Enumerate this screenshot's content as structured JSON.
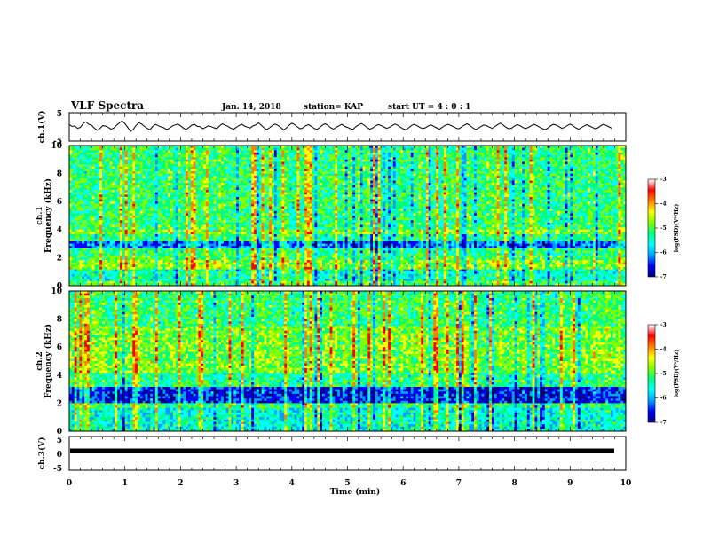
{
  "header": {
    "title": "VLF Spectra",
    "date": "Jan. 14, 2018",
    "station": "station= KAP",
    "start": "start  UT =   4 : 0  : 1"
  },
  "colors": {
    "spectrum_scale": [
      "#000080",
      "#0000ff",
      "#00a0ff",
      "#00ffff",
      "#00ff80",
      "#80ff00",
      "#ffff00",
      "#ff8000",
      "#ff0000",
      "#ffffff"
    ]
  },
  "chart_data": [
    {
      "id": "ch1-waveform",
      "type": "line",
      "ylabel": "ch.1(V)",
      "ylim": [
        -5,
        5
      ],
      "yticks": [
        "5",
        "-5"
      ],
      "xlim": [
        0,
        10
      ],
      "x_step_min": 0.05,
      "values": [
        0.8,
        0.2,
        0.3,
        -0.5,
        -0.2,
        1.2,
        1.8,
        0.9,
        0.6,
        -0.4,
        -1.2,
        -0.6,
        0.4,
        0.3,
        -0.2,
        -0.8,
        -0.4,
        0.6,
        1.4,
        2.1,
        1.2,
        -0.2,
        -1.6,
        -0.9,
        0.5,
        1.5,
        1.0,
        0.2,
        -0.5,
        -1.0,
        0.2,
        0.9,
        0.4,
        0.0,
        -0.3,
        -0.9,
        -0.5,
        0.3,
        0.7,
        1.0,
        0.4,
        -0.4,
        -1.0,
        -0.2,
        0.6,
        0.9,
        0.2,
        0.1,
        -0.6,
        -0.2,
        0.4,
        0.1,
        -0.3,
        -0.6,
        0.3,
        1.1,
        0.6,
        0.2,
        -0.4,
        -0.8,
        -0.2,
        0.5,
        0.9,
        0.3,
        -0.1,
        -0.4,
        0.3,
        0.7,
        1.4,
        0.6,
        -0.3,
        -0.9,
        -0.3,
        0.5,
        1.0,
        0.5,
        -0.2,
        -1.1,
        -0.4,
        0.6,
        1.3,
        0.8,
        0.0,
        -0.7,
        -0.3,
        0.4,
        0.8,
        0.2,
        -0.5,
        -0.9,
        -0.2,
        0.6,
        1.1,
        0.5,
        -0.3,
        -0.8,
        -0.1,
        0.4,
        0.9,
        0.2,
        -0.2,
        -0.6,
        -0.9,
        0.1,
        0.7,
        1.2,
        0.6,
        -0.2,
        -0.8,
        -0.4,
        0.3,
        0.8,
        0.5,
        0.0,
        -0.5,
        -0.2,
        0.4,
        1.0,
        0.6,
        -0.1,
        -0.7,
        -1.0,
        -0.3,
        0.5,
        0.9,
        0.4,
        -0.2,
        -0.6,
        -0.3,
        0.3,
        0.7,
        0.2,
        -0.3,
        -0.8,
        -0.2,
        0.5,
        0.9,
        0.6,
        0.1,
        -0.4,
        -0.7,
        0.0,
        0.6,
        1.1,
        0.5,
        -0.3,
        -0.9,
        -0.5,
        0.2,
        0.7,
        0.4,
        -0.1,
        -0.5,
        0.2,
        0.8,
        1.3,
        0.6,
        -0.2,
        -0.7,
        -0.4,
        0.3,
        0.8,
        0.4,
        -0.2,
        -0.6,
        -0.2,
        0.4,
        0.9,
        0.5,
        -0.1,
        -0.6,
        -1.0,
        -0.4,
        0.4,
        0.9,
        0.6,
        0.1,
        -0.5,
        -0.2,
        0.5,
        1.0,
        0.4,
        -0.3,
        -0.8,
        -0.3,
        0.3,
        0.8,
        0.3,
        -0.2,
        -0.7,
        -0.3,
        0.4,
        0.9,
        0.5,
        0.0,
        -0.5
      ]
    },
    {
      "id": "ch1-spectrogram",
      "type": "heatmap",
      "ylabel_line1": "ch.1",
      "ylabel_line2": "Frequency (kHz)",
      "ylim": [
        0,
        10
      ],
      "xlim": [
        0,
        10
      ],
      "yticks": [
        "0",
        "2",
        "4",
        "6",
        "8",
        "10"
      ],
      "colorbar": {
        "label": "log(PSD)(V²/Hz)",
        "range": [
          -7,
          -3
        ],
        "ticks": [
          "-3",
          "-4",
          "-5",
          "-6",
          "-7"
        ]
      },
      "band_levels_by_freq_khz": [
        {
          "from": 0.0,
          "to": 0.4,
          "level": 0.55
        },
        {
          "from": 0.4,
          "to": 1.2,
          "level": 0.45
        },
        {
          "from": 1.2,
          "to": 1.8,
          "level": 0.62
        },
        {
          "from": 1.8,
          "to": 2.2,
          "level": 0.55
        },
        {
          "from": 2.2,
          "to": 2.6,
          "level": 0.5
        },
        {
          "from": 2.6,
          "to": 3.2,
          "level": 0.25
        },
        {
          "from": 3.2,
          "to": 3.6,
          "level": 0.5
        },
        {
          "from": 3.6,
          "to": 4.0,
          "level": 0.62
        },
        {
          "from": 4.0,
          "to": 10.0,
          "level": 0.52
        }
      ]
    },
    {
      "id": "ch2-spectrogram",
      "type": "heatmap",
      "ylabel_line1": "ch.2",
      "ylabel_line2": "Frequency (kHz)",
      "ylim": [
        0,
        10
      ],
      "xlim": [
        0,
        10
      ],
      "yticks": [
        "0",
        "2",
        "4",
        "6",
        "8",
        "10"
      ],
      "colorbar": {
        "label": "log(PSD)(V²/Hz)",
        "range": [
          -7,
          -3
        ],
        "ticks": [
          "-3",
          "-4",
          "-5",
          "-6",
          "-7"
        ]
      },
      "band_levels_by_freq_khz": [
        {
          "from": 0.0,
          "to": 1.6,
          "level": 0.42
        },
        {
          "from": 1.6,
          "to": 2.0,
          "level": 0.52
        },
        {
          "from": 2.0,
          "to": 3.1,
          "level": 0.18
        },
        {
          "from": 3.1,
          "to": 4.2,
          "level": 0.5
        },
        {
          "from": 4.2,
          "to": 7.5,
          "level": 0.6
        },
        {
          "from": 7.5,
          "to": 10.0,
          "level": 0.52
        }
      ]
    },
    {
      "id": "ch3-waveform",
      "type": "line",
      "ylabel": "ch.3(V)",
      "ylim": [
        -5,
        5
      ],
      "yticks": [
        "5",
        "0",
        "-5"
      ],
      "xlim": [
        0,
        10
      ],
      "constant_value": 0,
      "xlabel": "Time (min)",
      "xticks": [
        "0",
        "1",
        "2",
        "3",
        "4",
        "5",
        "6",
        "7",
        "8",
        "9",
        "10"
      ]
    }
  ]
}
